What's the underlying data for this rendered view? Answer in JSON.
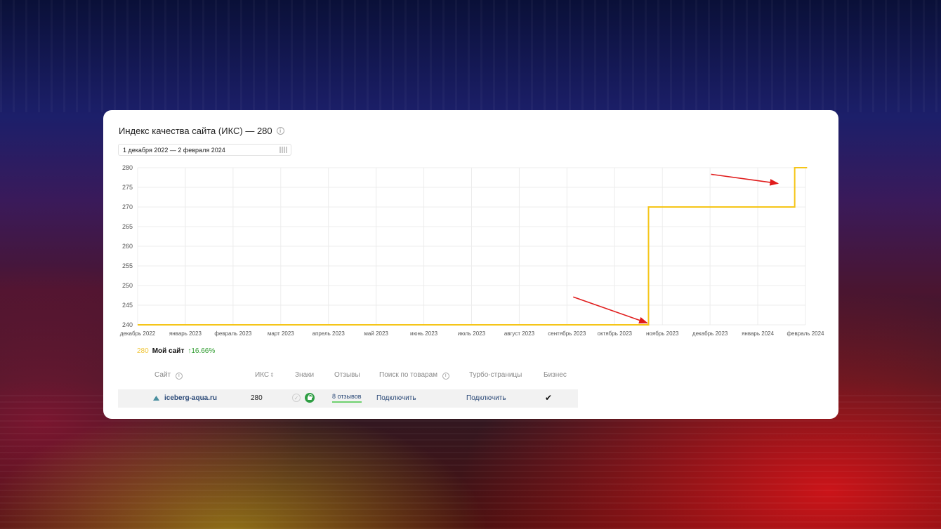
{
  "card": {
    "title": "Индекс качества сайта (ИКС) — 280",
    "info_icon": "info-icon",
    "date_range": "1 декабря 2022 — 2 февраля 2024",
    "calendar_icon": "calendar-icon"
  },
  "chart_data": {
    "type": "line",
    "title": "Индекс качества сайта (ИКС) — 280",
    "xlabel": "",
    "ylabel": "",
    "x_ticks": [
      "декабрь 2022",
      "январь 2023",
      "февраль 2023",
      "март 2023",
      "апрель 2023",
      "май 2023",
      "июнь 2023",
      "июль 2023",
      "август 2023",
      "сентябрь 2023",
      "октябрь 2023",
      "ноябрь 2023",
      "декабрь 2023",
      "январь 2024",
      "февраль 2024"
    ],
    "y_ticks": [
      240,
      245,
      250,
      255,
      260,
      265,
      270,
      275,
      280
    ],
    "ylim": [
      240,
      280
    ],
    "grid": true,
    "series": [
      {
        "name": "Мой сайт",
        "color": "#f5c518",
        "points": [
          {
            "x": "2022-12-01",
            "y": 240
          },
          {
            "x": "2023-10-23",
            "y": 240
          },
          {
            "x": "2023-10-23",
            "y": 270
          },
          {
            "x": "2024-01-25",
            "y": 270
          },
          {
            "x": "2024-01-25",
            "y": 280
          },
          {
            "x": "2024-02-02",
            "y": 280
          }
        ]
      }
    ],
    "annotations": [
      {
        "type": "arrow",
        "color": "#e01b1b",
        "target": {
          "x": "2023-10-22",
          "y": 240.5
        }
      },
      {
        "type": "arrow",
        "color": "#e01b1b",
        "target": {
          "x": "2024-01-14",
          "y": 276
        }
      }
    ]
  },
  "legend": {
    "value": "280",
    "name": "Мой сайт",
    "change": "↑16.66%"
  },
  "table": {
    "headers": {
      "site": "Сайт",
      "iks": "ИКС",
      "signs": "Знаки",
      "reviews": "Отзывы",
      "products": "Поиск по товарам",
      "turbo": "Турбо-страницы",
      "business": "Бизнес"
    },
    "row": {
      "site_icon": "iceberg-logo-icon",
      "site": "iceberg-aqua.ru",
      "iks": "280",
      "sign_check_icon": "check-circle-icon",
      "sign_lock_icon": "lock-badge-icon",
      "reviews": "8 отзывов",
      "products": "Подключить",
      "turbo": "Подключить",
      "business": "✔"
    }
  }
}
